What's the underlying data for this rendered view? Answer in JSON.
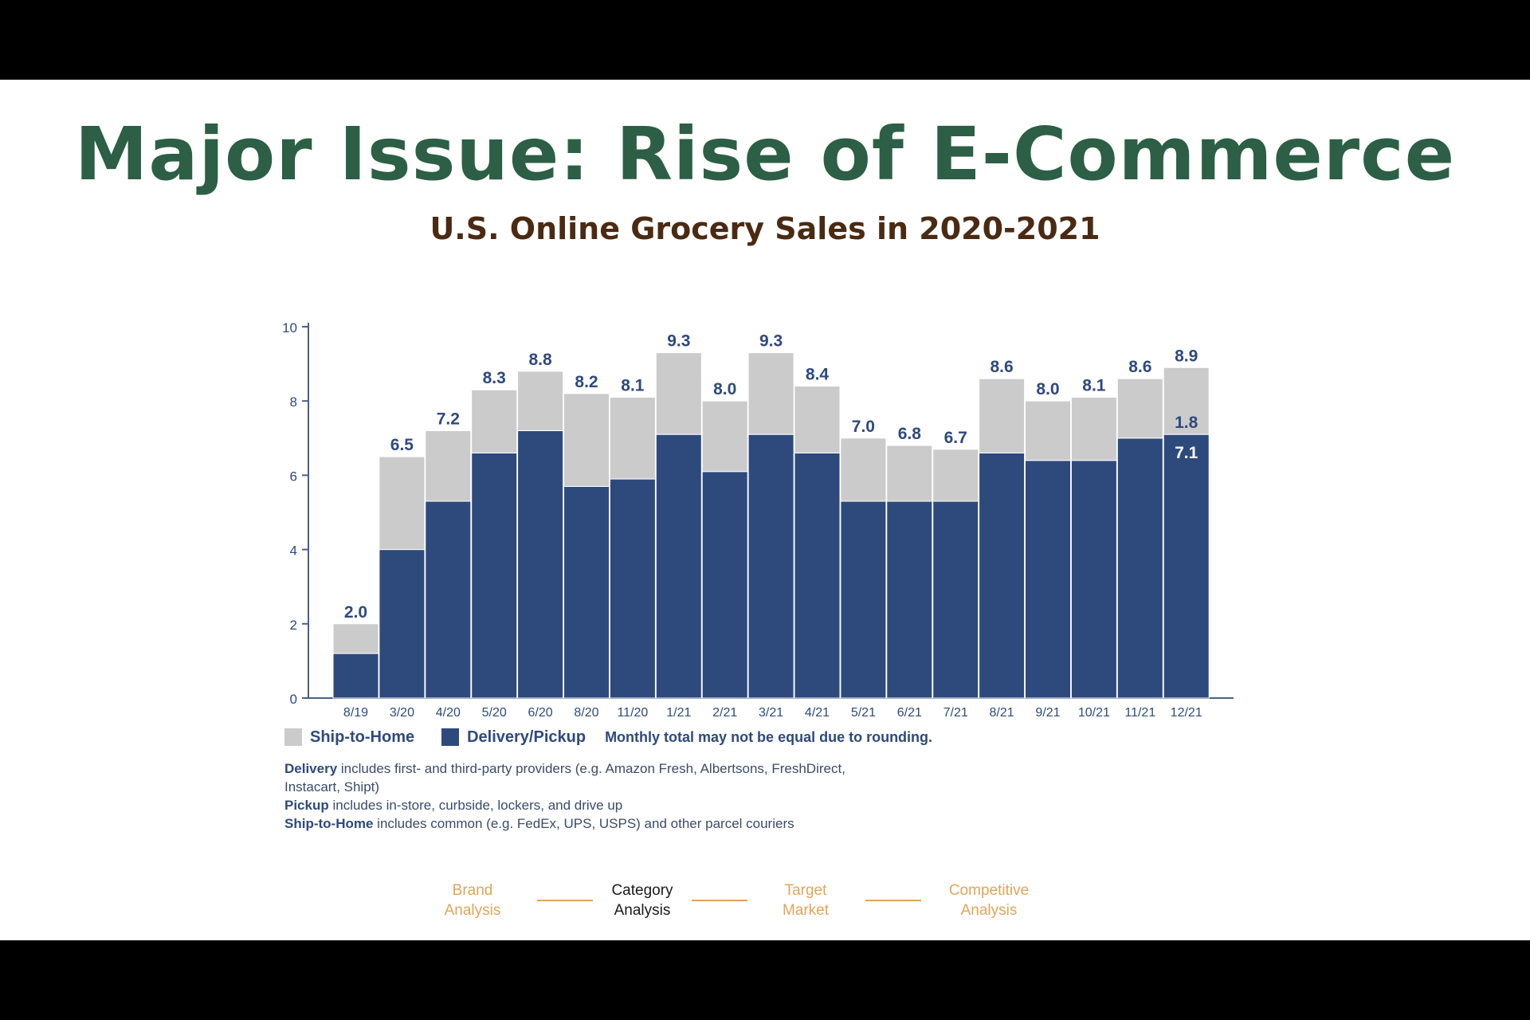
{
  "slide": {
    "title": "Major Issue: Rise of E-Commerce",
    "subtitle": "U.S. Online Grocery Sales in 2020-2021"
  },
  "colors": {
    "title": "#2c5f45",
    "subtitle": "#4a2a12",
    "ship_to_home": "#cbcbcb",
    "delivery_pickup": "#2e4a7d",
    "nav_inactive": "#e0a55a",
    "nav_active": "#1a1a1a"
  },
  "chart_data": {
    "type": "bar",
    "stacked": true,
    "categories": [
      "8/19",
      "3/20",
      "4/20",
      "5/20",
      "6/20",
      "8/20",
      "11/20",
      "1/21",
      "2/21",
      "3/21",
      "4/21",
      "5/21",
      "6/21",
      "7/21",
      "8/21",
      "9/21",
      "10/21",
      "11/21",
      "12/21"
    ],
    "series": [
      {
        "name": "Delivery/Pickup",
        "color": "#2e4a7d",
        "values": [
          1.2,
          4.0,
          5.3,
          6.6,
          7.2,
          5.7,
          5.9,
          7.1,
          6.1,
          7.1,
          6.6,
          5.3,
          5.3,
          5.3,
          6.6,
          6.4,
          6.4,
          7.0,
          7.1
        ]
      },
      {
        "name": "Ship-to-Home",
        "color": "#cbcbcb",
        "values": [
          0.8,
          2.5,
          1.9,
          1.7,
          1.6,
          2.5,
          2.2,
          2.2,
          1.9,
          2.2,
          1.8,
          1.7,
          1.5,
          1.4,
          2.0,
          1.6,
          1.7,
          1.6,
          1.8
        ]
      }
    ],
    "total_labels": [
      "2.0",
      "6.5",
      "7.2",
      "8.3",
      "8.8",
      "8.2",
      "8.1",
      "9.3",
      "8.0",
      "9.3",
      "8.4",
      "7.0",
      "6.8",
      "6.7",
      "8.6",
      "8.0",
      "8.1",
      "8.6",
      "8.9"
    ],
    "segment_labels": [
      {
        "category": "12/21",
        "series": "Ship-to-Home",
        "label": "1.8"
      },
      {
        "category": "12/21",
        "series": "Delivery/Pickup",
        "label": "7.1"
      }
    ],
    "yticks": [
      "0",
      "2",
      "4",
      "6",
      "8",
      "10"
    ],
    "ylim": [
      0,
      10
    ],
    "xlabel": "",
    "ylabel": "",
    "grid": false,
    "legend_placement": "bottom-left"
  },
  "legend": {
    "items": [
      {
        "label": "Ship-to-Home",
        "color": "#cbcbcb"
      },
      {
        "label": "Delivery/Pickup",
        "color": "#2e4a7d"
      }
    ],
    "note": "Monthly total may not be equal due to rounding."
  },
  "notes": [
    {
      "term": "Delivery",
      "text": " includes first- and third-party providers (e.g. Amazon Fresh, Albertsons, FreshDirect, Instacart, Shipt)"
    },
    {
      "term": "Pickup",
      "text": " includes in-store, curbside, lockers, and drive up"
    },
    {
      "term": "Ship-to-Home",
      "text": " includes common (e.g. FedEx, UPS, USPS) and other parcel couriers"
    }
  ],
  "nav": [
    {
      "line1": "Brand",
      "line2": "Analysis",
      "active": false
    },
    {
      "line1": "Category",
      "line2": "Analysis",
      "active": true
    },
    {
      "line1": "Target",
      "line2": "Market",
      "active": false
    },
    {
      "line1": "Competitive",
      "line2": "Analysis",
      "active": false
    }
  ]
}
